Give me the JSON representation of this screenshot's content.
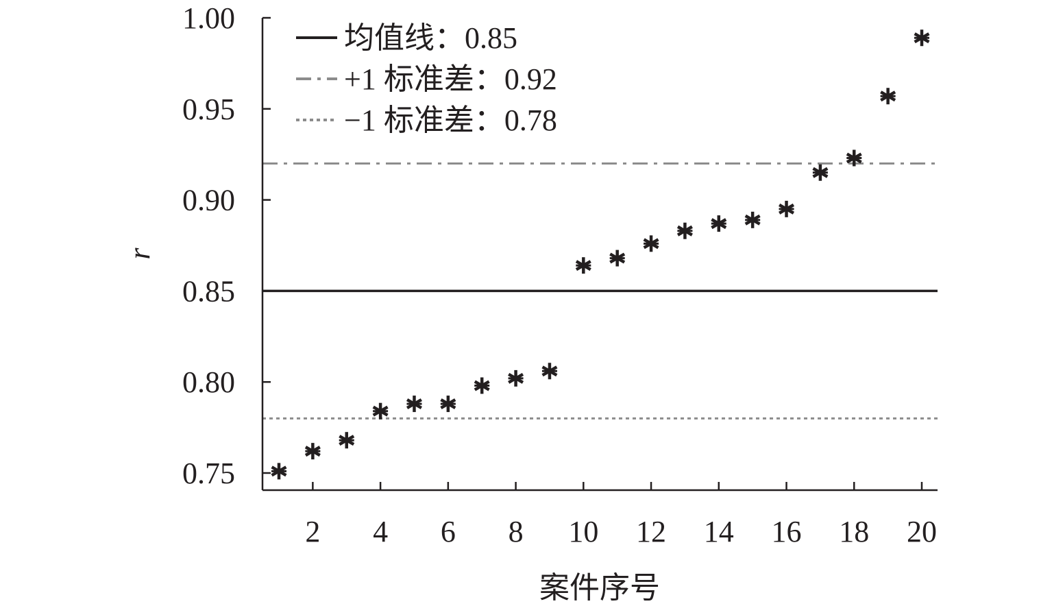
{
  "chart_data": {
    "type": "scatter",
    "xlabel": "案件序号",
    "ylabel": "r",
    "xlim": [
      0.5,
      20.5
    ],
    "ylim": [
      0.745,
      1.0
    ],
    "x_ticks": [
      2,
      4,
      6,
      8,
      10,
      12,
      14,
      16,
      18,
      20
    ],
    "x_tick_labels": [
      "2",
      "4",
      "6",
      "8",
      "10",
      "12",
      "14",
      "16",
      "18",
      "20"
    ],
    "y_ticks": [
      0.75,
      0.8,
      0.85,
      0.9,
      0.95,
      1.0
    ],
    "y_tick_labels": [
      "0.75",
      "0.80",
      "0.85",
      "0.90",
      "0.95",
      "1.00"
    ],
    "grid": false,
    "legend_position": "top-left",
    "series": [
      {
        "marker": "asterisk",
        "color": "#231f20",
        "x": [
          1,
          2,
          3,
          4,
          5,
          6,
          7,
          8,
          9,
          10,
          11,
          12,
          13,
          14,
          15,
          16,
          17,
          18,
          19,
          20
        ],
        "y": [
          0.751,
          0.762,
          0.768,
          0.784,
          0.788,
          0.788,
          0.798,
          0.802,
          0.806,
          0.864,
          0.868,
          0.876,
          0.883,
          0.887,
          0.889,
          0.895,
          0.915,
          0.923,
          0.957,
          0.989
        ]
      }
    ],
    "reference_lines": [
      {
        "label": "均值线：0.85",
        "y": 0.85,
        "style": "solid",
        "color": "#231f20"
      },
      {
        "label": "+1 标准差：0.92",
        "y": 0.92,
        "style": "dashdot",
        "color": "#8c8c8c"
      },
      {
        "label": "−1 标准差：0.78",
        "y": 0.78,
        "style": "dotted",
        "color": "#8c8c8c"
      }
    ]
  }
}
